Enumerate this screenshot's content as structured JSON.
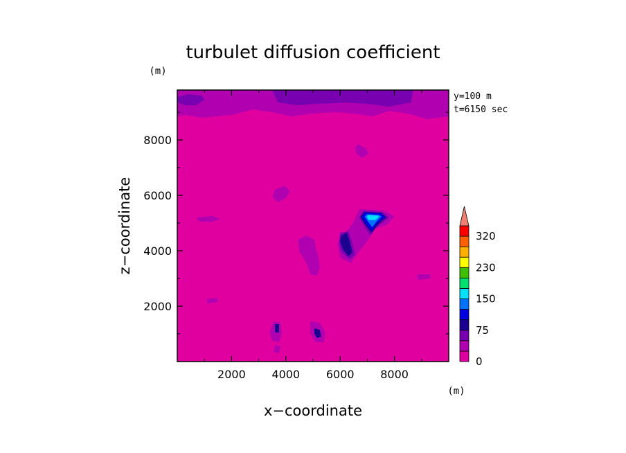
{
  "chart_data": {
    "type": "heatmap",
    "title": "turbulet diffusion coefficient",
    "xlabel": "x−coordinate",
    "ylabel": "z−coordinate",
    "x_unit": "(m)",
    "y_unit": "(m)",
    "xlim": [
      0,
      10000
    ],
    "ylim": [
      0,
      9800
    ],
    "x_ticks": [
      2000,
      4000,
      6000,
      8000
    ],
    "y_ticks": [
      2000,
      4000,
      6000,
      8000
    ],
    "x_tick_labels": [
      "2000",
      "4000",
      "6000",
      "8000"
    ],
    "y_tick_labels": [
      "2000",
      "4000",
      "6000",
      "8000"
    ],
    "annotations": [
      "y=100 m",
      "t=6150 sec"
    ],
    "colorbar": {
      "max_arrow_color": "#f08070",
      "levels": [
        0,
        25,
        50,
        75,
        100,
        125,
        150,
        175,
        200,
        230,
        260,
        290,
        320
      ],
      "tick_labels": [
        "0",
        "75",
        "150",
        "230",
        "320"
      ],
      "tick_values": [
        0,
        75,
        150,
        230,
        320
      ],
      "colors": [
        "#e000a0",
        "#b000b0",
        "#7800b0",
        "#1c0090",
        "#0000e0",
        "#0070ff",
        "#00e0ff",
        "#00e070",
        "#40c000",
        "#ffff00",
        "#ffb000",
        "#ff6000",
        "#ff0000"
      ]
    },
    "features": [
      {
        "type": "band",
        "level": 25,
        "points": [
          [
            0,
            9800
          ],
          [
            10000,
            9800
          ],
          [
            10000,
            8850
          ],
          [
            9200,
            8750
          ],
          [
            8500,
            8950
          ],
          [
            7800,
            9050
          ],
          [
            7200,
            8850
          ],
          [
            6500,
            8950
          ],
          [
            5800,
            9000
          ],
          [
            5000,
            8950
          ],
          [
            4200,
            8850
          ],
          [
            3500,
            9000
          ],
          [
            2800,
            9100
          ],
          [
            2000,
            8900
          ],
          [
            1400,
            8850
          ],
          [
            900,
            8800
          ],
          [
            300,
            8900
          ],
          [
            0,
            8850
          ]
        ]
      },
      {
        "type": "blob",
        "level": 50,
        "points": [
          [
            3500,
            9800
          ],
          [
            8700,
            9800
          ],
          [
            8600,
            9350
          ],
          [
            7800,
            9200
          ],
          [
            7000,
            9300
          ],
          [
            6200,
            9350
          ],
          [
            5200,
            9300
          ],
          [
            4400,
            9250
          ],
          [
            3700,
            9350
          ]
        ]
      },
      {
        "type": "blob",
        "level": 50,
        "points": [
          [
            0,
            9550
          ],
          [
            400,
            9650
          ],
          [
            900,
            9600
          ],
          [
            1000,
            9450
          ],
          [
            700,
            9250
          ],
          [
            300,
            9250
          ],
          [
            0,
            9350
          ]
        ]
      },
      {
        "type": "blob",
        "level": 25,
        "points": [
          [
            6650,
            7850
          ],
          [
            6950,
            7700
          ],
          [
            7050,
            7500
          ],
          [
            6800,
            7350
          ],
          [
            6600,
            7500
          ],
          [
            6550,
            7700
          ]
        ]
      },
      {
        "type": "blob",
        "level": 25,
        "points": [
          [
            3600,
            6200
          ],
          [
            3950,
            6350
          ],
          [
            4150,
            6150
          ],
          [
            4000,
            5900
          ],
          [
            3700,
            5750
          ],
          [
            3500,
            5950
          ]
        ]
      },
      {
        "type": "blob",
        "level": 25,
        "points": [
          [
            700,
            5200
          ],
          [
            1300,
            5250
          ],
          [
            1600,
            5150
          ],
          [
            1300,
            5050
          ],
          [
            800,
            5050
          ]
        ]
      },
      {
        "type": "blob",
        "level": 25,
        "points": [
          [
            6700,
            5500
          ],
          [
            7600,
            5450
          ],
          [
            8000,
            5250
          ],
          [
            7750,
            4950
          ],
          [
            7300,
            4800
          ],
          [
            7000,
            4350
          ],
          [
            6600,
            3850
          ],
          [
            6400,
            3550
          ],
          [
            6000,
            3750
          ],
          [
            5900,
            4250
          ],
          [
            6150,
            4600
          ],
          [
            6450,
            4950
          ]
        ]
      },
      {
        "type": "blob",
        "level": 25,
        "points": [
          [
            4450,
            4400
          ],
          [
            4750,
            4550
          ],
          [
            5050,
            4400
          ],
          [
            5100,
            4100
          ],
          [
            5200,
            3800
          ],
          [
            5250,
            3400
          ],
          [
            5150,
            3100
          ],
          [
            4900,
            3150
          ],
          [
            4800,
            3450
          ],
          [
            4650,
            3750
          ],
          [
            4500,
            3950
          ]
        ]
      },
      {
        "type": "blob",
        "level": 25,
        "points": [
          [
            3550,
            1450
          ],
          [
            3800,
            1400
          ],
          [
            3850,
            1000
          ],
          [
            3750,
            700
          ],
          [
            3500,
            750
          ],
          [
            3400,
            1050
          ]
        ]
      },
      {
        "type": "blob",
        "level": 25,
        "points": [
          [
            4900,
            1450
          ],
          [
            5250,
            1400
          ],
          [
            5450,
            1050
          ],
          [
            5400,
            700
          ],
          [
            5100,
            700
          ],
          [
            4900,
            1000
          ]
        ]
      },
      {
        "type": "blob",
        "level": 25,
        "points": [
          [
            3600,
            600
          ],
          [
            3800,
            550
          ],
          [
            3750,
            300
          ],
          [
            3550,
            350
          ]
        ]
      },
      {
        "type": "blob",
        "level": 25,
        "points": [
          [
            8850,
            3150
          ],
          [
            9300,
            3150
          ],
          [
            9350,
            3000
          ],
          [
            8850,
            2950
          ]
        ]
      },
      {
        "type": "blob",
        "level": 25,
        "points": [
          [
            1100,
            2250
          ],
          [
            1450,
            2300
          ],
          [
            1500,
            2150
          ],
          [
            1100,
            2100
          ]
        ]
      },
      {
        "type": "blob",
        "level": 50,
        "points": [
          [
            6850,
            5450
          ],
          [
            7550,
            5400
          ],
          [
            7800,
            5200
          ],
          [
            7400,
            4900
          ],
          [
            7100,
            4550
          ],
          [
            6850,
            4950
          ],
          [
            6700,
            5200
          ]
        ]
      },
      {
        "type": "blob",
        "level": 50,
        "points": [
          [
            6000,
            4650
          ],
          [
            6300,
            4700
          ],
          [
            6450,
            4300
          ],
          [
            6550,
            3850
          ],
          [
            6350,
            3700
          ],
          [
            6050,
            3950
          ],
          [
            5950,
            4300
          ]
        ]
      },
      {
        "type": "blob",
        "level": 75,
        "points": [
          [
            6880,
            5400
          ],
          [
            7520,
            5370
          ],
          [
            7700,
            5210
          ],
          [
            7400,
            4950
          ],
          [
            7150,
            4650
          ],
          [
            6900,
            4970
          ],
          [
            6750,
            5220
          ]
        ]
      },
      {
        "type": "blob",
        "level": 75,
        "points": [
          [
            6050,
            4550
          ],
          [
            6250,
            4650
          ],
          [
            6350,
            4350
          ],
          [
            6450,
            3950
          ],
          [
            6300,
            3800
          ],
          [
            6100,
            4050
          ],
          [
            6000,
            4350
          ]
        ]
      },
      {
        "type": "blob",
        "level": 75,
        "points": [
          [
            3600,
            1350
          ],
          [
            3750,
            1350
          ],
          [
            3750,
            1050
          ],
          [
            3600,
            1050
          ]
        ]
      },
      {
        "type": "blob",
        "level": 75,
        "points": [
          [
            5050,
            1200
          ],
          [
            5250,
            1150
          ],
          [
            5300,
            900
          ],
          [
            5150,
            850
          ],
          [
            5050,
            1000
          ]
        ]
      },
      {
        "type": "blob",
        "level": 100,
        "points": [
          [
            6900,
            5380
          ],
          [
            7500,
            5350
          ],
          [
            7650,
            5220
          ],
          [
            7350,
            4980
          ],
          [
            7150,
            4720
          ],
          [
            6950,
            4980
          ],
          [
            6800,
            5220
          ]
        ]
      },
      {
        "type": "blob",
        "level": 125,
        "points": [
          [
            6980,
            5320
          ],
          [
            7430,
            5300
          ],
          [
            7520,
            5230
          ],
          [
            7350,
            5060
          ],
          [
            7180,
            4850
          ],
          [
            7020,
            5060
          ],
          [
            6900,
            5230
          ]
        ]
      },
      {
        "type": "blob",
        "level": 150,
        "points": [
          [
            7030,
            5290
          ],
          [
            7380,
            5270
          ],
          [
            7430,
            5220
          ],
          [
            7300,
            5110
          ],
          [
            7050,
            5110
          ],
          [
            6980,
            5220
          ]
        ]
      }
    ]
  }
}
